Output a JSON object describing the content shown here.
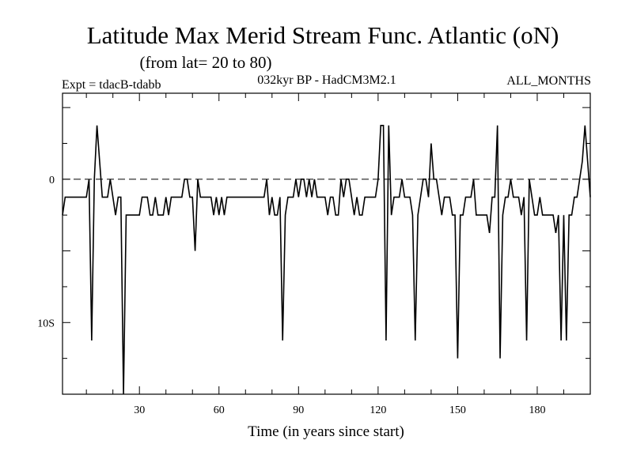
{
  "header": {
    "title": "Latitude Max Merid Stream Func. Atlantic (oN)",
    "subtitle": "(from lat= 20 to 80)",
    "experiment": "Expt = tdacB-tdabb",
    "model": "032kyr BP - HadCM3M2.1",
    "period": "ALL_MONTHS"
  },
  "chart_data": {
    "type": "line",
    "title": "Latitude Max Merid Stream Func. Atlantic (oN)",
    "xlabel": "Time (in years since start)",
    "ylabel": "",
    "xlim": [
      1,
      200
    ],
    "ylim": [
      -15,
      6
    ],
    "x_ticks": [
      {
        "value": 30,
        "label": "30"
      },
      {
        "value": 60,
        "label": "60"
      },
      {
        "value": 90,
        "label": "90"
      },
      {
        "value": 120,
        "label": "120"
      },
      {
        "value": 150,
        "label": "150"
      },
      {
        "value": 180,
        "label": "180"
      }
    ],
    "y_ticks": [
      {
        "value": 0,
        "label": "0"
      },
      {
        "value": -10,
        "label": "10S"
      }
    ],
    "reference_line": {
      "value": 0,
      "style": "dashed"
    },
    "series": [
      {
        "name": "Latitude Max Merid Stream Func. Atlantic",
        "color": "#000000",
        "points": [
          [
            1,
            -2.5
          ],
          [
            2,
            -1.25
          ],
          [
            10,
            -1.25
          ],
          [
            11,
            0
          ],
          [
            12,
            -11.25
          ],
          [
            13,
            0
          ],
          [
            14,
            3.75
          ],
          [
            15,
            1.25
          ],
          [
            16,
            -1.25
          ],
          [
            18,
            -1.25
          ],
          [
            19,
            0
          ],
          [
            20,
            -1.25
          ],
          [
            21,
            -2.5
          ],
          [
            22,
            -1.25
          ],
          [
            23,
            -1.25
          ],
          [
            24,
            -15
          ],
          [
            25,
            -2.5
          ],
          [
            30,
            -2.5
          ],
          [
            31,
            -1.25
          ],
          [
            33,
            -1.25
          ],
          [
            34,
            -2.5
          ],
          [
            35,
            -2.5
          ],
          [
            36,
            -1.25
          ],
          [
            37,
            -2.5
          ],
          [
            38,
            -2.5
          ],
          [
            39,
            -2.5
          ],
          [
            40,
            -1.25
          ],
          [
            41,
            -2.5
          ],
          [
            42,
            -1.25
          ],
          [
            46,
            -1.25
          ],
          [
            47,
            0
          ],
          [
            48,
            0
          ],
          [
            49,
            -1.25
          ],
          [
            50,
            -1.25
          ],
          [
            51,
            -5
          ],
          [
            52,
            0
          ],
          [
            53,
            -1.25
          ],
          [
            57,
            -1.25
          ],
          [
            58,
            -2.5
          ],
          [
            59,
            -1.25
          ],
          [
            60,
            -2.5
          ],
          [
            61,
            -1.25
          ],
          [
            62,
            -2.5
          ],
          [
            63,
            -1.25
          ],
          [
            77,
            -1.25
          ],
          [
            78,
            0
          ],
          [
            79,
            -2.5
          ],
          [
            80,
            -1.25
          ],
          [
            81,
            -2.5
          ],
          [
            82,
            -2.5
          ],
          [
            83,
            -1.25
          ],
          [
            84,
            -11.25
          ],
          [
            85,
            -2.5
          ],
          [
            86,
            -1.25
          ],
          [
            88,
            -1.25
          ],
          [
            89,
            0
          ],
          [
            90,
            -1.25
          ],
          [
            91,
            0
          ],
          [
            92,
            0
          ],
          [
            93,
            -1.25
          ],
          [
            94,
            0
          ],
          [
            95,
            -1.25
          ],
          [
            96,
            0
          ],
          [
            97,
            -1.25
          ],
          [
            100,
            -1.25
          ],
          [
            101,
            -2.5
          ],
          [
            102,
            -1.25
          ],
          [
            103,
            -1.25
          ],
          [
            104,
            -2.5
          ],
          [
            105,
            -2.5
          ],
          [
            106,
            0
          ],
          [
            107,
            -1.25
          ],
          [
            108,
            0
          ],
          [
            109,
            0
          ],
          [
            110,
            -1.25
          ],
          [
            111,
            -2.5
          ],
          [
            112,
            -1.25
          ],
          [
            113,
            -2.5
          ],
          [
            114,
            -2.5
          ],
          [
            115,
            -1.25
          ],
          [
            119,
            -1.25
          ],
          [
            120,
            0
          ],
          [
            121,
            3.75
          ],
          [
            122,
            3.75
          ],
          [
            123,
            -11.25
          ],
          [
            124,
            3.75
          ],
          [
            125,
            -2.5
          ],
          [
            126,
            -1.25
          ],
          [
            128,
            -1.25
          ],
          [
            129,
            0
          ],
          [
            130,
            -1.25
          ],
          [
            132,
            -1.25
          ],
          [
            133,
            -2.5
          ],
          [
            134,
            -11.25
          ],
          [
            135,
            -2.5
          ],
          [
            136,
            -1.25
          ],
          [
            137,
            0
          ],
          [
            138,
            0
          ],
          [
            139,
            -1.25
          ],
          [
            140,
            2.5
          ],
          [
            141,
            0
          ],
          [
            142,
            0
          ],
          [
            143,
            -1.25
          ],
          [
            144,
            -2.5
          ],
          [
            145,
            -1.25
          ],
          [
            147,
            -1.25
          ],
          [
            148,
            -2.5
          ],
          [
            149,
            -2.5
          ],
          [
            150,
            -12.5
          ],
          [
            151,
            -2.5
          ],
          [
            152,
            -2.5
          ],
          [
            153,
            -1.25
          ],
          [
            155,
            -1.25
          ],
          [
            156,
            0
          ],
          [
            157,
            -2.5
          ],
          [
            158,
            -2.5
          ],
          [
            161,
            -2.5
          ],
          [
            162,
            -3.75
          ],
          [
            163,
            -1.25
          ],
          [
            164,
            -1.25
          ],
          [
            165,
            3.75
          ],
          [
            166,
            -12.5
          ],
          [
            167,
            -2.5
          ],
          [
            168,
            -1.25
          ],
          [
            169,
            -1.25
          ],
          [
            170,
            0
          ],
          [
            171,
            -1.25
          ],
          [
            173,
            -1.25
          ],
          [
            174,
            -2.5
          ],
          [
            175,
            -1.25
          ],
          [
            176,
            -11.25
          ],
          [
            177,
            0
          ],
          [
            178,
            -1.25
          ],
          [
            179,
            -2.5
          ],
          [
            180,
            -2.5
          ],
          [
            181,
            -1.25
          ],
          [
            182,
            -2.5
          ],
          [
            183,
            -2.5
          ],
          [
            184,
            -2.5
          ],
          [
            185,
            -2.5
          ],
          [
            186,
            -2.5
          ],
          [
            187,
            -3.75
          ],
          [
            188,
            -2.5
          ],
          [
            189,
            -11.25
          ],
          [
            190,
            -2.5
          ],
          [
            191,
            -11.25
          ],
          [
            192,
            -2.5
          ],
          [
            193,
            -2.5
          ],
          [
            194,
            -1.25
          ],
          [
            195,
            -1.25
          ],
          [
            196,
            0
          ],
          [
            197,
            1.25
          ],
          [
            198,
            3.75
          ],
          [
            199,
            1.25
          ],
          [
            200,
            -1.25
          ]
        ]
      }
    ]
  }
}
